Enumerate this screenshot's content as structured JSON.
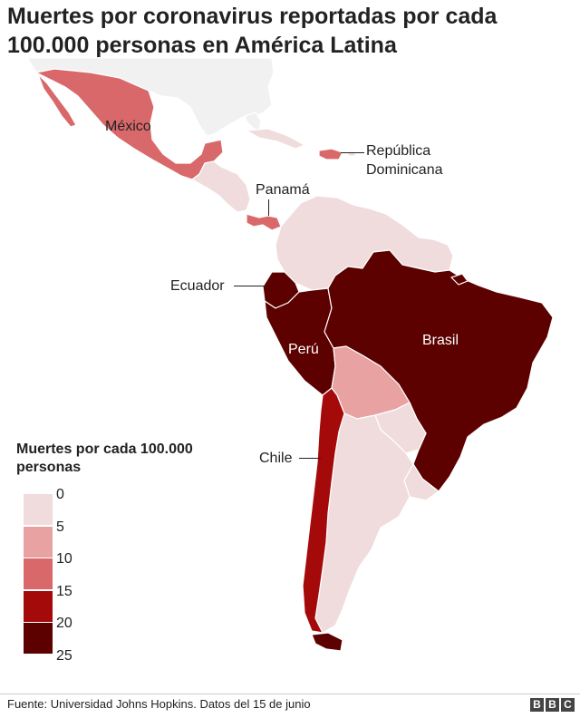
{
  "title": "Muertes por coronavirus reportadas por cada 100.000 personas en América Latina",
  "colors": {
    "na": "#f1f1f1",
    "bin_0_5": "#f0dcdc",
    "bin_5_10": "#e8a2a2",
    "bin_10_15": "#d9686b",
    "bin_15_20": "#a50a0a",
    "bin_20_25": "#5c0000",
    "border": "#ffffff"
  },
  "labels": {
    "mexico": "México",
    "republica_dominicana": "República\nDominicana",
    "panama": "Panamá",
    "ecuador": "Ecuador",
    "brasil": "Brasil",
    "peru": "Perú",
    "chile": "Chile"
  },
  "legend": {
    "title": "Muertes por cada 100.000 personas",
    "ticks": [
      "0",
      "5",
      "10",
      "15",
      "20",
      "25"
    ]
  },
  "footer": {
    "source": "Fuente: Universidad Johns Hopkins. Datos del 15 de junio",
    "logo": [
      "B",
      "B",
      "C"
    ]
  }
}
